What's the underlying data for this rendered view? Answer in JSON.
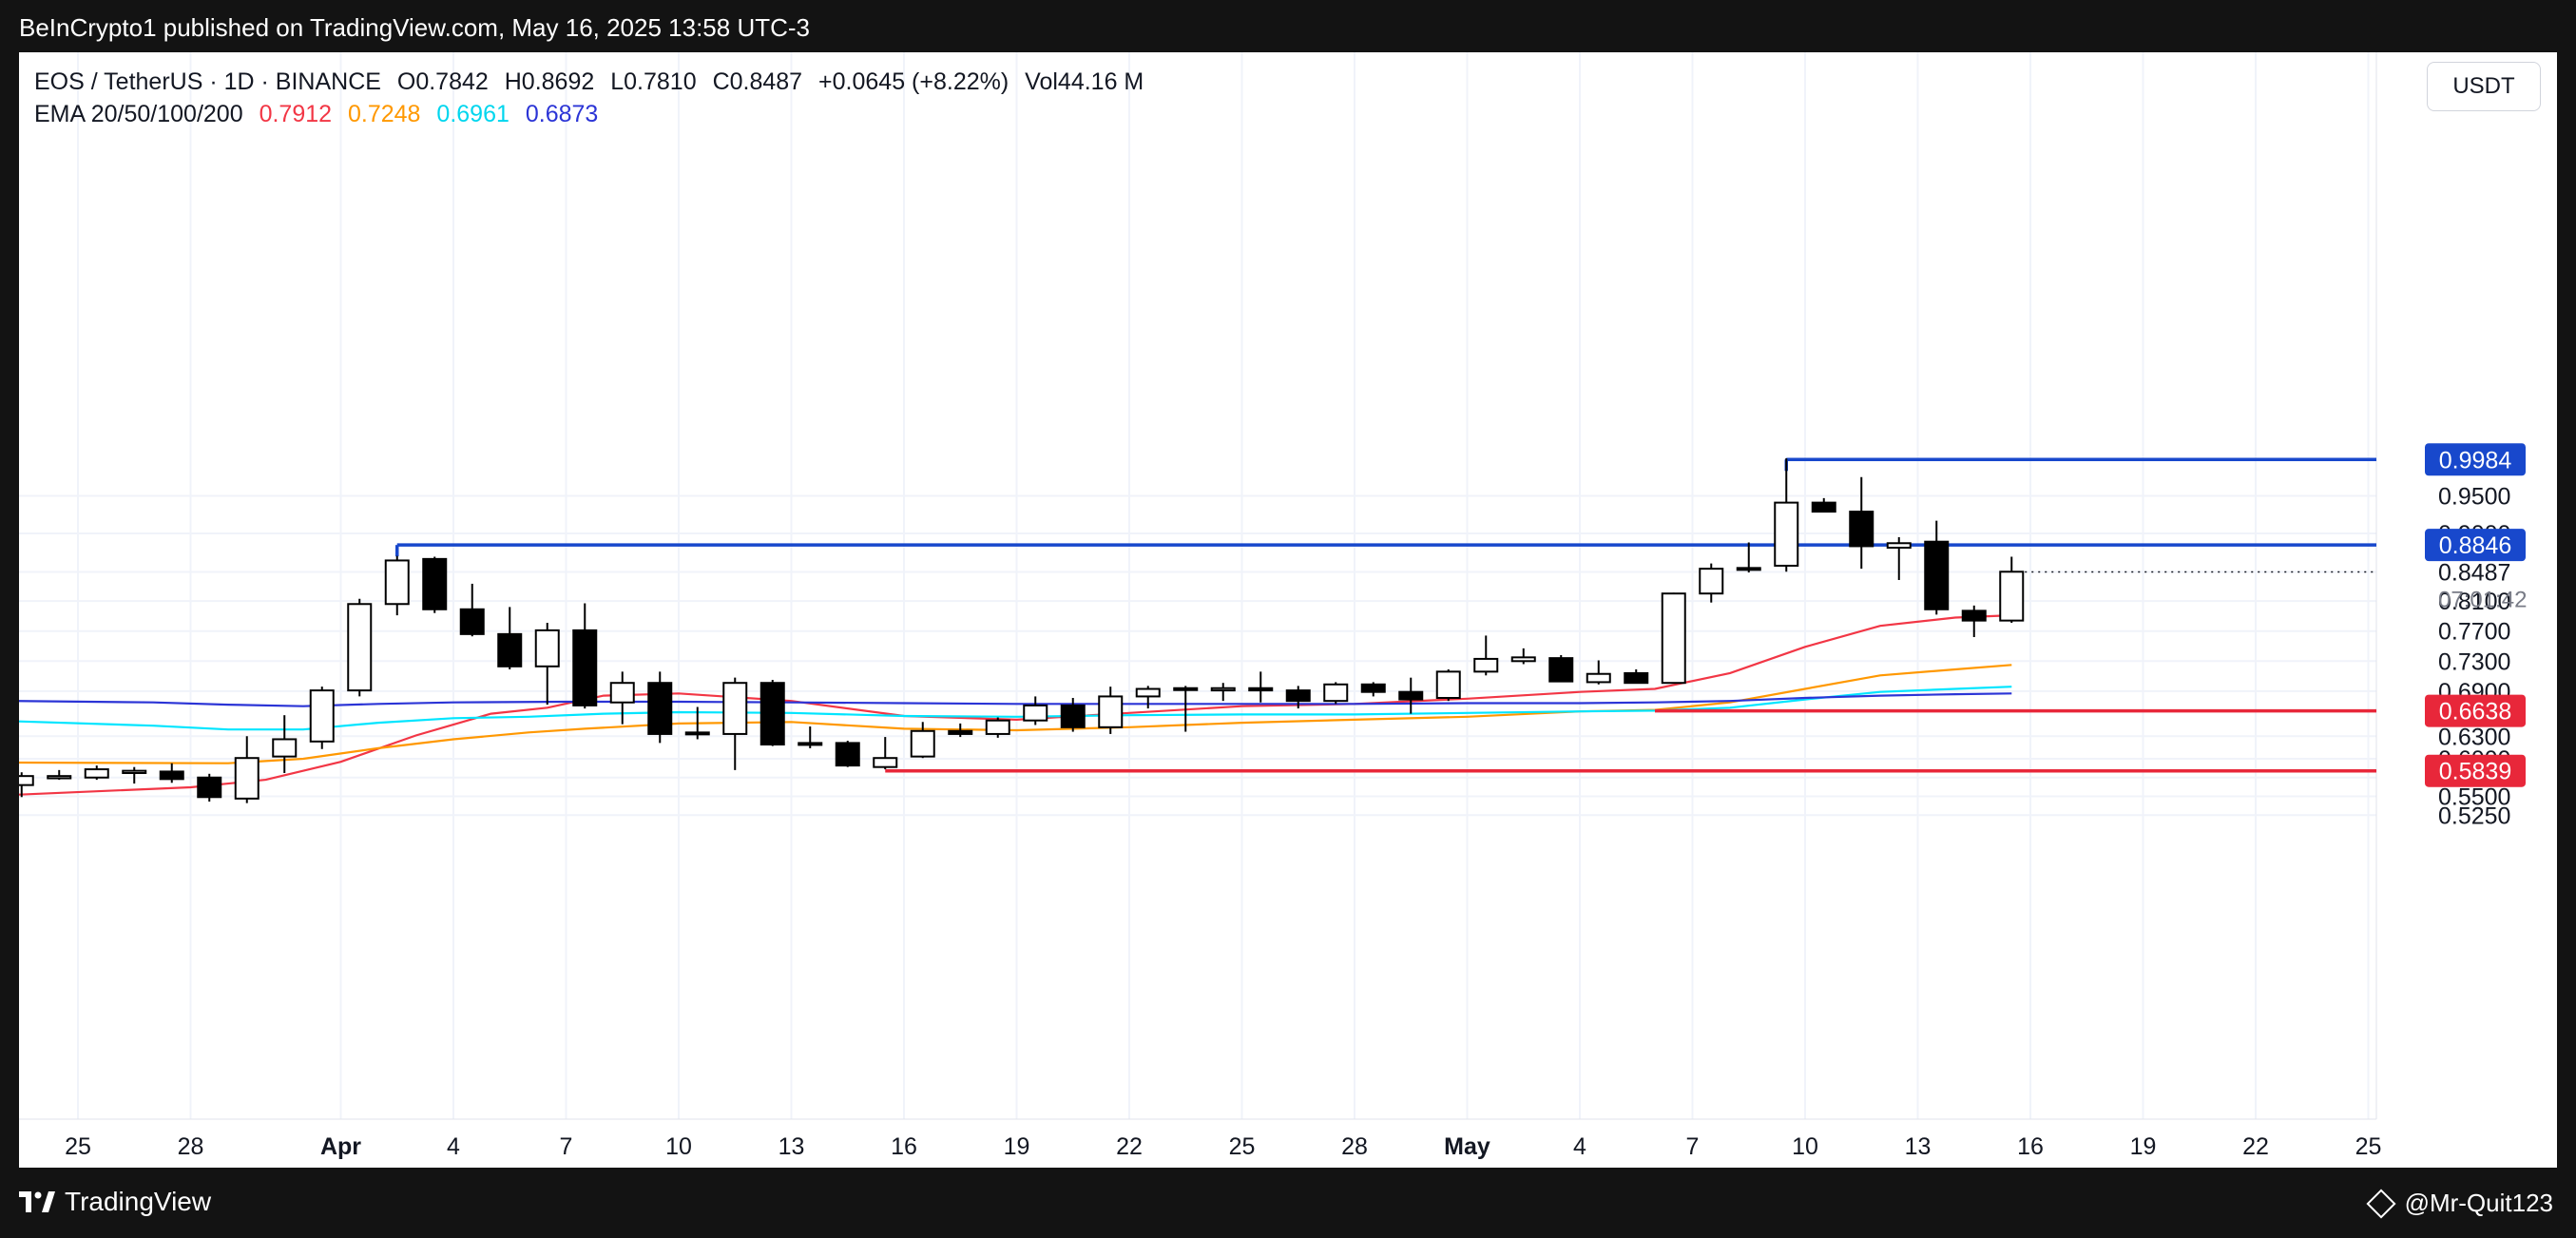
{
  "header": {
    "publisher": "BeInCrypto1 published on TradingView.com, May 16, 2025 13:58 UTC-3"
  },
  "footer": {
    "brand": "TradingView",
    "author": "@Mr-Quit123"
  },
  "legend": {
    "symbol": "EOS / TetherUS · 1D · BINANCE",
    "open": "O0.7842",
    "high": "H0.8692",
    "low": "L0.7810",
    "close": "C0.8487",
    "change": "+0.0645 (+8.22%)",
    "volume": "Vol44.16 M",
    "ema_label": "EMA 20/50/100/200",
    "ema_values": [
      "0.7912",
      "0.7248",
      "0.6961",
      "0.6873"
    ]
  },
  "currency_button": "USDT",
  "countdown": "07:01:42",
  "colors": {
    "ema20": "#f23645",
    "ema50": "#ff9800",
    "ema100": "#00e5ff",
    "ema200": "#2b34d6",
    "resistance": "#1848cc",
    "support": "#e8273a",
    "bull": "#ffffff",
    "bear": "#000000"
  },
  "chart_data": {
    "type": "candlestick",
    "y_ticks": [
      "0.9500",
      "0.9000",
      "0.8487",
      "0.8100",
      "0.7700",
      "0.7300",
      "0.6900",
      "0.6300",
      "0.6000",
      "0.5750",
      "0.5500",
      "0.5250"
    ],
    "x_ticks": [
      {
        "day": 0,
        "label": "25"
      },
      {
        "day": 3,
        "label": "28"
      },
      {
        "day": 7,
        "label": "Apr"
      },
      {
        "day": 10,
        "label": "4"
      },
      {
        "day": 13,
        "label": "7"
      },
      {
        "day": 16,
        "label": "10"
      },
      {
        "day": 19,
        "label": "13"
      },
      {
        "day": 22,
        "label": "16"
      },
      {
        "day": 25,
        "label": "19"
      },
      {
        "day": 28,
        "label": "22"
      },
      {
        "day": 31,
        "label": "25"
      },
      {
        "day": 34,
        "label": "28"
      },
      {
        "day": 37,
        "label": "May"
      },
      {
        "day": 40,
        "label": "4"
      },
      {
        "day": 43,
        "label": "7"
      },
      {
        "day": 46,
        "label": "10"
      },
      {
        "day": 49,
        "label": "13"
      },
      {
        "day": 52,
        "label": "16"
      },
      {
        "day": 55,
        "label": "19"
      },
      {
        "day": 58,
        "label": "22"
      },
      {
        "day": 61,
        "label": "25"
      }
    ],
    "candles": [
      {
        "day": -1.5,
        "o": 0.565,
        "h": 0.582,
        "l": 0.549,
        "c": 0.577
      },
      {
        "day": -0.5,
        "o": 0.574,
        "h": 0.585,
        "l": 0.572,
        "c": 0.577
      },
      {
        "day": 0.5,
        "o": 0.575,
        "h": 0.591,
        "l": 0.572,
        "c": 0.586
      },
      {
        "day": 1.5,
        "o": 0.581,
        "h": 0.589,
        "l": 0.567,
        "c": 0.584
      },
      {
        "day": 2.5,
        "o": 0.583,
        "h": 0.594,
        "l": 0.568,
        "c": 0.573
      },
      {
        "day": 3.5,
        "o": 0.575,
        "h": 0.58,
        "l": 0.543,
        "c": 0.549
      },
      {
        "day": 4.5,
        "o": 0.547,
        "h": 0.63,
        "l": 0.541,
        "c": 0.601
      },
      {
        "day": 5.5,
        "o": 0.603,
        "h": 0.658,
        "l": 0.581,
        "c": 0.626
      },
      {
        "day": 6.5,
        "o": 0.623,
        "h": 0.696,
        "l": 0.613,
        "c": 0.691
      },
      {
        "day": 7.5,
        "o": 0.691,
        "h": 0.813,
        "l": 0.683,
        "c": 0.806
      },
      {
        "day": 8.5,
        "o": 0.806,
        "h": 0.87,
        "l": 0.791,
        "c": 0.864
      },
      {
        "day": 9.5,
        "o": 0.866,
        "h": 0.869,
        "l": 0.794,
        "c": 0.799
      },
      {
        "day": 10.5,
        "o": 0.799,
        "h": 0.833,
        "l": 0.763,
        "c": 0.766
      },
      {
        "day": 11.5,
        "o": 0.766,
        "h": 0.802,
        "l": 0.719,
        "c": 0.723
      },
      {
        "day": 12.5,
        "o": 0.723,
        "h": 0.781,
        "l": 0.672,
        "c": 0.771
      },
      {
        "day": 13.5,
        "o": 0.771,
        "h": 0.807,
        "l": 0.667,
        "c": 0.671
      },
      {
        "day": 14.5,
        "o": 0.675,
        "h": 0.716,
        "l": 0.646,
        "c": 0.701
      },
      {
        "day": 15.5,
        "o": 0.701,
        "h": 0.716,
        "l": 0.621,
        "c": 0.633
      },
      {
        "day": 16.5,
        "o": 0.635,
        "h": 0.669,
        "l": 0.626,
        "c": 0.633
      },
      {
        "day": 17.5,
        "o": 0.633,
        "h": 0.708,
        "l": 0.585,
        "c": 0.701
      },
      {
        "day": 18.5,
        "o": 0.701,
        "h": 0.705,
        "l": 0.617,
        "c": 0.619
      },
      {
        "day": 19.5,
        "o": 0.619,
        "h": 0.643,
        "l": 0.614,
        "c": 0.621
      },
      {
        "day": 20.5,
        "o": 0.621,
        "h": 0.624,
        "l": 0.589,
        "c": 0.591
      },
      {
        "day": 21.5,
        "o": 0.589,
        "h": 0.629,
        "l": 0.586,
        "c": 0.601
      },
      {
        "day": 22.5,
        "o": 0.603,
        "h": 0.649,
        "l": 0.601,
        "c": 0.637
      },
      {
        "day": 23.5,
        "o": 0.637,
        "h": 0.647,
        "l": 0.629,
        "c": 0.633
      },
      {
        "day": 24.5,
        "o": 0.633,
        "h": 0.655,
        "l": 0.628,
        "c": 0.651
      },
      {
        "day": 25.5,
        "o": 0.651,
        "h": 0.683,
        "l": 0.645,
        "c": 0.671
      },
      {
        "day": 26.5,
        "o": 0.671,
        "h": 0.681,
        "l": 0.636,
        "c": 0.642
      },
      {
        "day": 27.5,
        "o": 0.642,
        "h": 0.696,
        "l": 0.633,
        "c": 0.683
      },
      {
        "day": 28.5,
        "o": 0.683,
        "h": 0.697,
        "l": 0.667,
        "c": 0.693
      },
      {
        "day": 29.5,
        "o": 0.694,
        "h": 0.697,
        "l": 0.636,
        "c": 0.694
      },
      {
        "day": 30.5,
        "o": 0.691,
        "h": 0.701,
        "l": 0.677,
        "c": 0.694
      },
      {
        "day": 31.5,
        "o": 0.694,
        "h": 0.716,
        "l": 0.675,
        "c": 0.691
      },
      {
        "day": 32.5,
        "o": 0.691,
        "h": 0.697,
        "l": 0.667,
        "c": 0.677
      },
      {
        "day": 33.5,
        "o": 0.677,
        "h": 0.702,
        "l": 0.673,
        "c": 0.699
      },
      {
        "day": 34.5,
        "o": 0.699,
        "h": 0.702,
        "l": 0.683,
        "c": 0.689
      },
      {
        "day": 35.5,
        "o": 0.689,
        "h": 0.708,
        "l": 0.66,
        "c": 0.679
      },
      {
        "day": 36.5,
        "o": 0.681,
        "h": 0.719,
        "l": 0.677,
        "c": 0.716
      },
      {
        "day": 37.5,
        "o": 0.716,
        "h": 0.764,
        "l": 0.711,
        "c": 0.733
      },
      {
        "day": 38.5,
        "o": 0.73,
        "h": 0.747,
        "l": 0.726,
        "c": 0.735
      },
      {
        "day": 39.5,
        "o": 0.734,
        "h": 0.738,
        "l": 0.703,
        "c": 0.703
      },
      {
        "day": 40.5,
        "o": 0.702,
        "h": 0.731,
        "l": 0.699,
        "c": 0.713
      },
      {
        "day": 41.5,
        "o": 0.714,
        "h": 0.719,
        "l": 0.701,
        "c": 0.701
      },
      {
        "day": 42.5,
        "o": 0.701,
        "h": 0.821,
        "l": 0.701,
        "c": 0.82
      },
      {
        "day": 43.5,
        "o": 0.82,
        "h": 0.86,
        "l": 0.808,
        "c": 0.853
      },
      {
        "day": 44.5,
        "o": 0.853,
        "h": 0.888,
        "l": 0.848,
        "c": 0.854
      },
      {
        "day": 45.5,
        "o": 0.857,
        "h": 1.0,
        "l": 0.849,
        "c": 0.941
      },
      {
        "day": 46.5,
        "o": 0.941,
        "h": 0.947,
        "l": 0.93,
        "c": 0.929
      },
      {
        "day": 47.5,
        "o": 0.929,
        "h": 0.975,
        "l": 0.853,
        "c": 0.883
      },
      {
        "day": 48.5,
        "o": 0.881,
        "h": 0.895,
        "l": 0.838,
        "c": 0.887
      },
      {
        "day": 49.5,
        "o": 0.889,
        "h": 0.917,
        "l": 0.792,
        "c": 0.799
      },
      {
        "day": 50.5,
        "o": 0.797,
        "h": 0.804,
        "l": 0.762,
        "c": 0.784
      },
      {
        "day": 51.5,
        "o": 0.784,
        "h": 0.869,
        "l": 0.781,
        "c": 0.849
      }
    ],
    "ema": [
      {
        "name": "EMA 20",
        "color": "#f23645",
        "points": [
          [
            -1.7,
            0.552
          ],
          [
            3,
            0.562
          ],
          [
            5,
            0.572
          ],
          [
            7,
            0.596
          ],
          [
            9,
            0.631
          ],
          [
            11,
            0.66
          ],
          [
            12.5,
            0.668
          ],
          [
            14,
            0.684
          ],
          [
            16,
            0.687
          ],
          [
            19,
            0.677
          ],
          [
            22,
            0.657
          ],
          [
            25,
            0.652
          ],
          [
            28,
            0.661
          ],
          [
            31,
            0.67
          ],
          [
            34,
            0.673
          ],
          [
            37,
            0.68
          ],
          [
            40,
            0.689
          ],
          [
            42,
            0.693
          ],
          [
            44,
            0.714
          ],
          [
            46,
            0.749
          ],
          [
            48,
            0.777
          ],
          [
            50,
            0.788
          ],
          [
            51.5,
            0.791
          ]
        ]
      },
      {
        "name": "EMA 50",
        "color": "#ff9800",
        "points": [
          [
            -1.7,
            0.595
          ],
          [
            4,
            0.594
          ],
          [
            6,
            0.6
          ],
          [
            8,
            0.614
          ],
          [
            10,
            0.626
          ],
          [
            12,
            0.635
          ],
          [
            13.5,
            0.64
          ],
          [
            16,
            0.647
          ],
          [
            19,
            0.649
          ],
          [
            22,
            0.64
          ],
          [
            25,
            0.638
          ],
          [
            28,
            0.642
          ],
          [
            31,
            0.648
          ],
          [
            34,
            0.652
          ],
          [
            37,
            0.656
          ],
          [
            40,
            0.663
          ],
          [
            42,
            0.665
          ],
          [
            44,
            0.675
          ],
          [
            46,
            0.693
          ],
          [
            48,
            0.711
          ],
          [
            50,
            0.719
          ],
          [
            51.5,
            0.725
          ]
        ]
      },
      {
        "name": "EMA 100",
        "color": "#00e5ff",
        "points": [
          [
            -1.7,
            0.65
          ],
          [
            2,
            0.644
          ],
          [
            4,
            0.639
          ],
          [
            6,
            0.639
          ],
          [
            8,
            0.648
          ],
          [
            10,
            0.654
          ],
          [
            12,
            0.656
          ],
          [
            14,
            0.66
          ],
          [
            16,
            0.662
          ],
          [
            19,
            0.661
          ],
          [
            22,
            0.657
          ],
          [
            25,
            0.656
          ],
          [
            28,
            0.658
          ],
          [
            31,
            0.659
          ],
          [
            34,
            0.659
          ],
          [
            37,
            0.661
          ],
          [
            40,
            0.663
          ],
          [
            42,
            0.664
          ],
          [
            44,
            0.668
          ],
          [
            46,
            0.679
          ],
          [
            48,
            0.689
          ],
          [
            50,
            0.693
          ],
          [
            51.5,
            0.696
          ]
        ]
      },
      {
        "name": "EMA 200",
        "color": "#2b34d6",
        "points": [
          [
            -1.7,
            0.677
          ],
          [
            2,
            0.675
          ],
          [
            4,
            0.672
          ],
          [
            6,
            0.67
          ],
          [
            8,
            0.673
          ],
          [
            10,
            0.675
          ],
          [
            13,
            0.676
          ],
          [
            16,
            0.676
          ],
          [
            19,
            0.675
          ],
          [
            22,
            0.674
          ],
          [
            25,
            0.673
          ],
          [
            28,
            0.673
          ],
          [
            31,
            0.673
          ],
          [
            34,
            0.673
          ],
          [
            37,
            0.674
          ],
          [
            40,
            0.674
          ],
          [
            42,
            0.675
          ],
          [
            44,
            0.677
          ],
          [
            46,
            0.681
          ],
          [
            48,
            0.684
          ],
          [
            50,
            0.686
          ],
          [
            51.5,
            0.687
          ]
        ]
      }
    ],
    "levels": [
      {
        "price": 0.9984,
        "label": "0.9984",
        "kind": "resistance",
        "from_day": 45.5
      },
      {
        "price": 0.8846,
        "label": "0.8846",
        "kind": "resistance",
        "from_day": 8.5
      },
      {
        "price": 0.6638,
        "label": "0.6638",
        "kind": "support",
        "from_day": 42
      },
      {
        "price": 0.5839,
        "label": "0.5839",
        "kind": "support",
        "from_day": 21.5
      }
    ],
    "last_price": 0.8487
  }
}
